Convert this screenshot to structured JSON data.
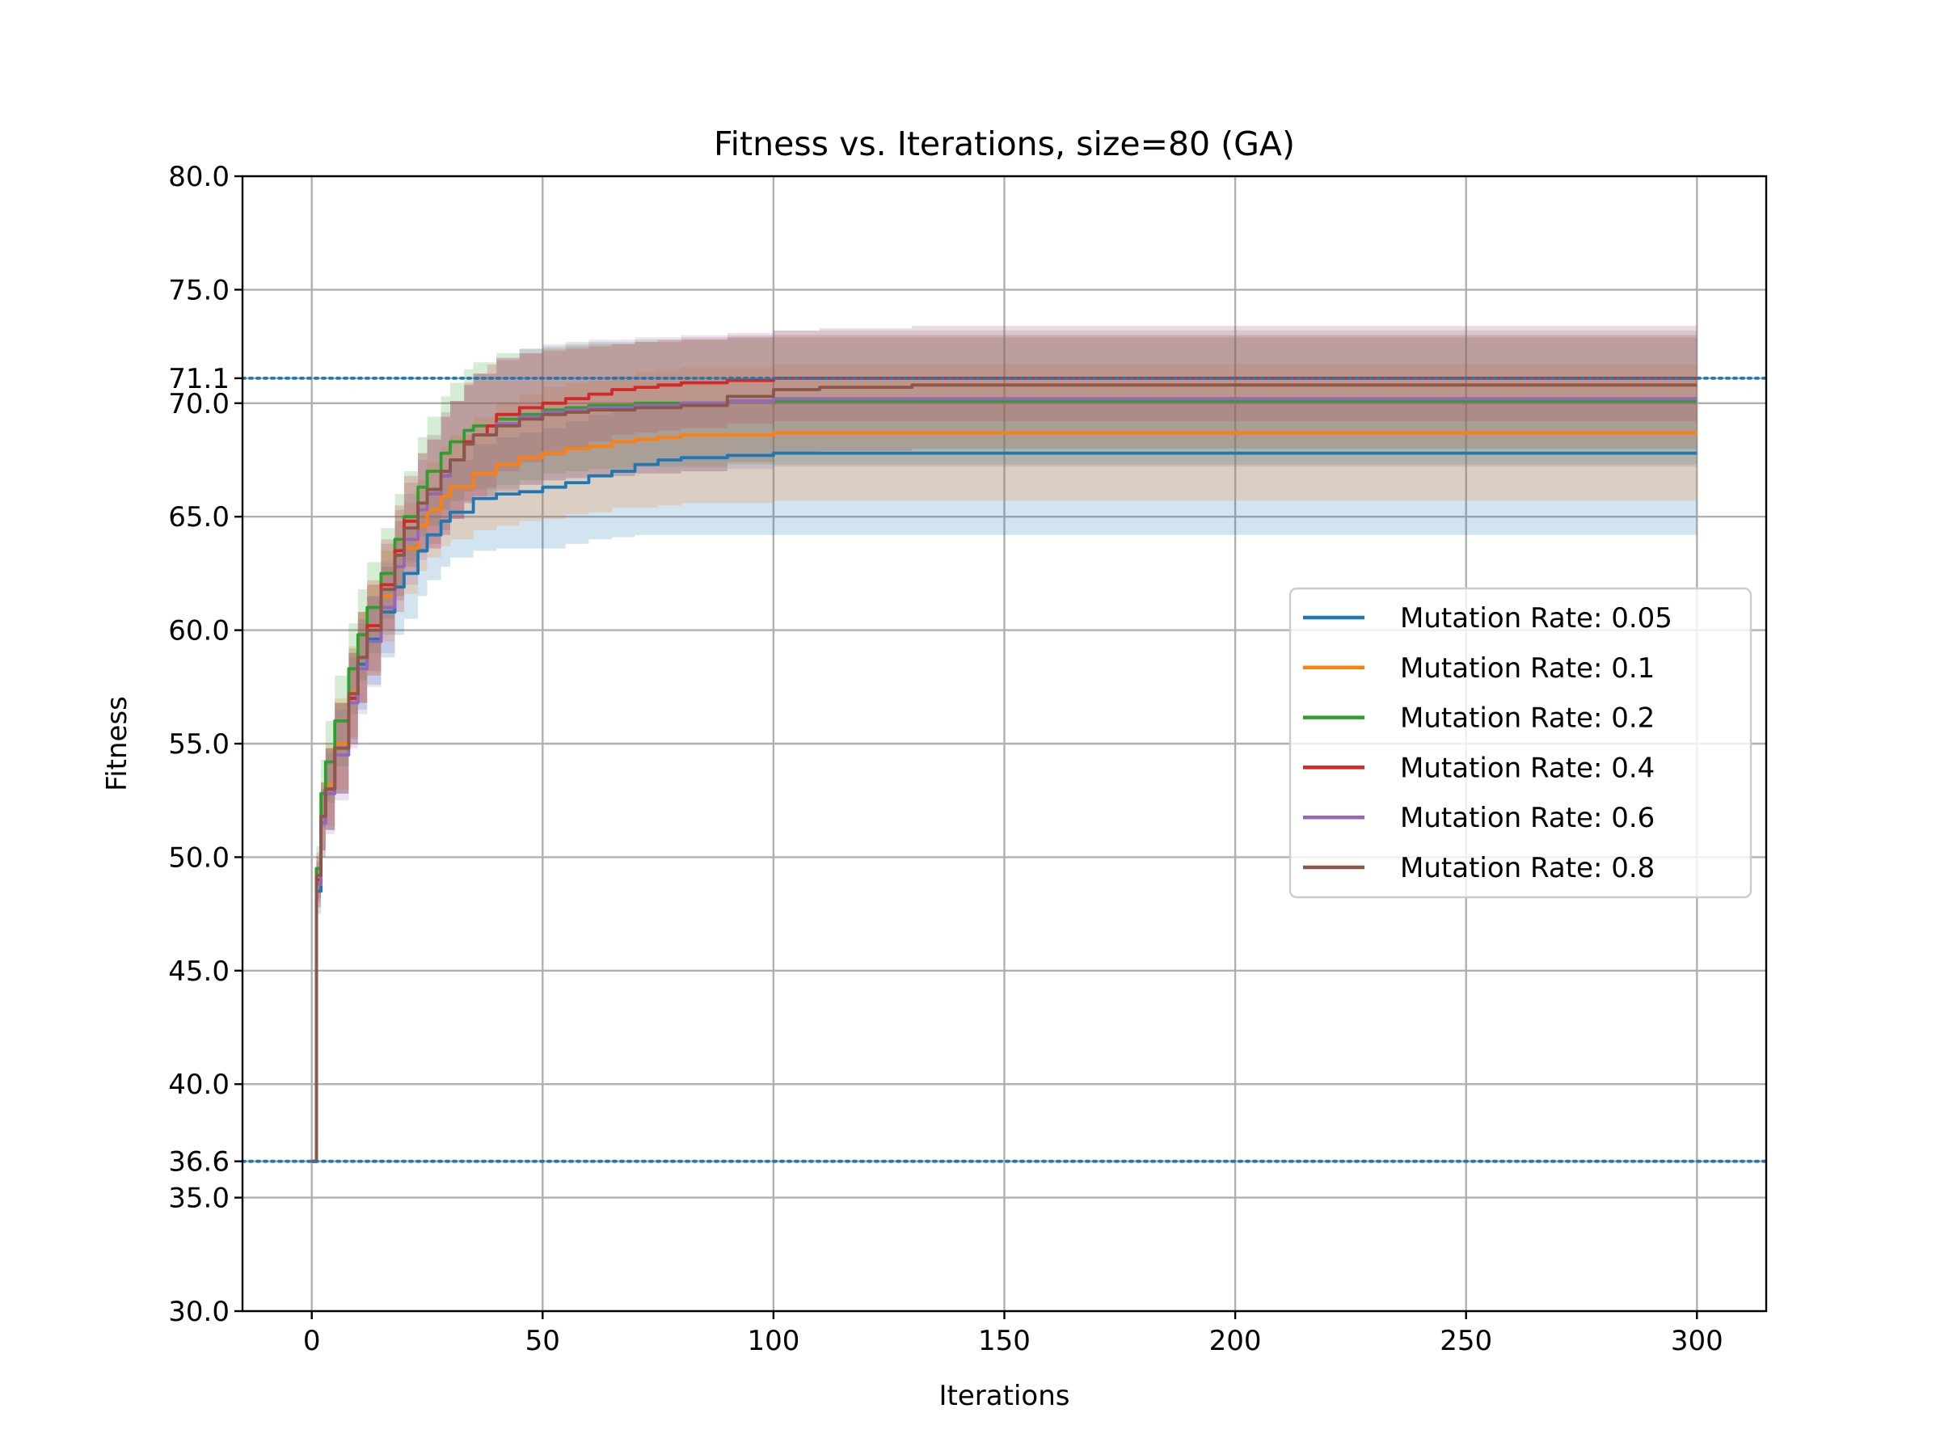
{
  "chart_data": {
    "type": "line",
    "title": "Fitness vs. Iterations, size=80 (GA)",
    "xlabel": "Iterations",
    "ylabel": "Fitness",
    "xlim": [
      -15,
      315
    ],
    "ylim": [
      30,
      80
    ],
    "xticks": [
      0,
      50,
      100,
      150,
      200,
      250,
      300
    ],
    "xtick_labels": [
      "0",
      "50",
      "100",
      "150",
      "200",
      "250",
      "300"
    ],
    "yticks": [
      30,
      35,
      36.6,
      40,
      45,
      50,
      55,
      60,
      65,
      70,
      71.1,
      75,
      80
    ],
    "ytick_labels": [
      "30.0",
      "35.0",
      "36.6",
      "40.0",
      "45.0",
      "50.0",
      "55.0",
      "60.0",
      "65.0",
      "70.0",
      "71.1",
      "75.0",
      "80.0"
    ],
    "grid": true,
    "reference_lines": [
      {
        "y": 71.1,
        "style": "dotted",
        "color": "#1f77b4"
      },
      {
        "y": 36.6,
        "style": "dotted",
        "color": "#1f77b4"
      }
    ],
    "legend_position": "center-right",
    "series": [
      {
        "name": "Mutation Rate: 0.05",
        "color": "#1f77b4",
        "x": [
          0,
          1,
          2,
          3,
          5,
          8,
          10,
          12,
          15,
          18,
          20,
          23,
          25,
          28,
          30,
          35,
          40,
          45,
          50,
          55,
          60,
          65,
          70,
          75,
          80,
          90,
          100,
          150,
          200,
          250,
          300
        ],
        "y": [
          36.6,
          48.5,
          51.5,
          53.0,
          54.8,
          57.0,
          58.5,
          59.6,
          60.8,
          61.9,
          62.5,
          63.5,
          64.2,
          64.8,
          65.2,
          65.8,
          66.0,
          66.1,
          66.3,
          66.5,
          66.8,
          67.0,
          67.3,
          67.5,
          67.6,
          67.7,
          67.8,
          67.8,
          67.8,
          67.8,
          67.8
        ],
        "upper": [
          36.6,
          49.5,
          53.0,
          54.8,
          56.8,
          59.0,
          60.5,
          61.5,
          62.8,
          63.9,
          64.5,
          65.5,
          66.3,
          67.0,
          67.5,
          68.2,
          68.5,
          68.7,
          68.9,
          69.2,
          69.5,
          69.7,
          69.9,
          70.0,
          70.1,
          70.1,
          70.1,
          70.1,
          70.1,
          70.1,
          70.1
        ],
        "lower": [
          36.6,
          47.5,
          50.0,
          51.2,
          52.8,
          55.0,
          56.5,
          57.6,
          58.8,
          59.8,
          60.5,
          61.5,
          62.2,
          62.8,
          63.2,
          63.5,
          63.6,
          63.6,
          63.6,
          63.8,
          64.0,
          64.1,
          64.2,
          64.2,
          64.2,
          64.2,
          64.2,
          64.2,
          64.2,
          64.2,
          64.2
        ]
      },
      {
        "name": "Mutation Rate: 0.1",
        "color": "#ff7f0e",
        "x": [
          0,
          1,
          2,
          3,
          5,
          8,
          10,
          12,
          15,
          18,
          20,
          23,
          25,
          28,
          30,
          35,
          40,
          45,
          50,
          55,
          60,
          65,
          70,
          75,
          80,
          90,
          100,
          150,
          200,
          250,
          300
        ],
        "y": [
          36.6,
          48.8,
          51.8,
          53.2,
          55.0,
          57.3,
          58.8,
          60.0,
          61.5,
          62.8,
          63.6,
          64.6,
          65.3,
          65.9,
          66.3,
          66.9,
          67.3,
          67.6,
          67.8,
          68.0,
          68.1,
          68.3,
          68.4,
          68.5,
          68.6,
          68.6,
          68.7,
          68.7,
          68.7,
          68.7,
          68.7
        ],
        "upper": [
          36.6,
          49.8,
          53.3,
          55.0,
          57.0,
          59.3,
          60.8,
          62.0,
          63.5,
          64.8,
          65.6,
          66.6,
          67.4,
          68.1,
          68.6,
          69.4,
          70.0,
          70.4,
          70.7,
          70.9,
          71.0,
          71.2,
          71.4,
          71.5,
          71.6,
          71.6,
          71.7,
          71.7,
          71.7,
          71.7,
          71.7
        ],
        "lower": [
          36.6,
          47.8,
          50.3,
          51.4,
          53.0,
          55.3,
          56.8,
          58.0,
          59.5,
          60.8,
          61.6,
          62.6,
          63.2,
          63.7,
          64.0,
          64.4,
          64.6,
          64.8,
          64.9,
          65.1,
          65.2,
          65.4,
          65.4,
          65.5,
          65.6,
          65.6,
          65.7,
          65.7,
          65.7,
          65.7,
          65.7
        ]
      },
      {
        "name": "Mutation Rate: 0.2",
        "color": "#2ca02c",
        "x": [
          0,
          1,
          2,
          3,
          5,
          8,
          10,
          12,
          15,
          18,
          20,
          23,
          25,
          28,
          30,
          33,
          35,
          40,
          45,
          50,
          55,
          60,
          70,
          80,
          90,
          100,
          150,
          200,
          250,
          300
        ],
        "y": [
          36.6,
          49.5,
          52.8,
          54.2,
          56.0,
          58.3,
          59.8,
          61.0,
          62.5,
          64.0,
          65.0,
          66.3,
          67.0,
          67.8,
          68.3,
          68.8,
          69.0,
          69.3,
          69.5,
          69.7,
          69.8,
          69.9,
          70.0,
          70.0,
          70.1,
          70.1,
          70.1,
          70.1,
          70.1,
          70.1
        ],
        "upper": [
          36.6,
          50.5,
          54.3,
          56.0,
          58.0,
          60.3,
          61.8,
          63.0,
          64.5,
          66.0,
          67.0,
          68.5,
          69.4,
          70.3,
          70.9,
          71.5,
          71.8,
          72.2,
          72.4,
          72.5,
          72.6,
          72.7,
          72.8,
          72.8,
          72.9,
          72.9,
          72.9,
          72.9,
          72.9,
          72.9
        ],
        "lower": [
          36.6,
          48.5,
          51.3,
          52.4,
          54.0,
          56.3,
          57.8,
          59.0,
          60.5,
          62.0,
          63.0,
          64.1,
          64.6,
          65.3,
          65.7,
          66.1,
          66.2,
          66.4,
          66.6,
          66.9,
          67.0,
          67.1,
          67.2,
          67.2,
          67.3,
          67.3,
          67.3,
          67.3,
          67.3,
          67.3
        ]
      },
      {
        "name": "Mutation Rate: 0.4",
        "color": "#d62728",
        "x": [
          0,
          1,
          2,
          3,
          5,
          8,
          10,
          12,
          15,
          18,
          20,
          23,
          25,
          28,
          30,
          33,
          35,
          38,
          40,
          45,
          50,
          55,
          60,
          65,
          70,
          75,
          80,
          90,
          100,
          150,
          200,
          250,
          300
        ],
        "y": [
          36.6,
          49.0,
          51.8,
          53.0,
          54.8,
          57.0,
          58.8,
          60.2,
          62.0,
          63.5,
          64.8,
          65.6,
          66.0,
          66.8,
          67.5,
          68.3,
          68.6,
          69.0,
          69.5,
          69.8,
          70.0,
          70.2,
          70.4,
          70.6,
          70.7,
          70.8,
          70.9,
          71.0,
          71.1,
          71.1,
          71.1,
          71.1,
          71.1
        ],
        "upper": [
          36.6,
          50.0,
          53.3,
          54.8,
          56.8,
          59.0,
          60.8,
          62.2,
          64.0,
          65.5,
          66.8,
          67.8,
          68.4,
          69.4,
          70.1,
          70.9,
          71.3,
          71.7,
          72.0,
          72.2,
          72.3,
          72.4,
          72.5,
          72.6,
          72.7,
          72.8,
          72.9,
          72.9,
          73.0,
          73.0,
          73.0,
          73.0,
          73.0
        ],
        "lower": [
          36.6,
          48.0,
          50.3,
          51.2,
          52.8,
          55.0,
          56.8,
          58.2,
          60.0,
          61.5,
          62.8,
          63.4,
          63.6,
          64.2,
          64.9,
          65.7,
          65.9,
          66.3,
          67.0,
          67.4,
          67.7,
          68.0,
          68.3,
          68.6,
          68.7,
          68.8,
          68.9,
          69.1,
          69.2,
          69.2,
          69.2,
          69.2,
          69.2
        ]
      },
      {
        "name": "Mutation Rate: 0.6",
        "color": "#9467bd",
        "x": [
          0,
          1,
          2,
          3,
          5,
          8,
          10,
          12,
          15,
          18,
          20,
          23,
          25,
          28,
          30,
          33,
          35,
          40,
          45,
          50,
          55,
          60,
          70,
          80,
          90,
          100,
          150,
          200,
          250,
          300
        ],
        "y": [
          36.6,
          48.8,
          51.5,
          52.8,
          54.5,
          56.8,
          58.3,
          59.5,
          61.0,
          62.8,
          64.0,
          65.3,
          66.0,
          66.8,
          67.5,
          68.2,
          68.6,
          69.1,
          69.4,
          69.6,
          69.7,
          69.8,
          69.9,
          70.0,
          70.1,
          70.2,
          70.2,
          70.2,
          70.2,
          70.2
        ],
        "upper": [
          36.6,
          49.8,
          53.0,
          54.6,
          56.5,
          58.8,
          60.3,
          61.5,
          63.0,
          64.8,
          66.0,
          67.5,
          68.4,
          69.4,
          70.1,
          70.8,
          71.3,
          72.0,
          72.4,
          72.6,
          72.7,
          72.8,
          72.9,
          73.0,
          73.1,
          73.2,
          73.2,
          73.2,
          73.2,
          73.2
        ],
        "lower": [
          36.6,
          47.8,
          50.0,
          51.0,
          52.5,
          54.8,
          56.3,
          57.5,
          59.0,
          60.8,
          62.0,
          63.1,
          63.6,
          64.2,
          64.9,
          65.6,
          65.9,
          66.2,
          66.4,
          66.6,
          66.7,
          66.8,
          66.9,
          67.0,
          67.1,
          67.2,
          67.2,
          67.2,
          67.2,
          67.2
        ]
      },
      {
        "name": "Mutation Rate: 0.8",
        "color": "#8c564b",
        "x": [
          0,
          1,
          2,
          3,
          5,
          8,
          10,
          12,
          15,
          18,
          20,
          23,
          25,
          28,
          30,
          33,
          35,
          40,
          45,
          50,
          55,
          60,
          70,
          80,
          90,
          100,
          110,
          130,
          150,
          200,
          250,
          300
        ],
        "y": [
          36.6,
          49.2,
          51.8,
          53.0,
          54.8,
          57.2,
          58.8,
          60.0,
          61.8,
          63.3,
          64.5,
          65.6,
          66.2,
          67.0,
          67.5,
          68.2,
          68.6,
          69.0,
          69.3,
          69.5,
          69.6,
          69.7,
          69.8,
          69.9,
          70.3,
          70.6,
          70.7,
          70.8,
          70.8,
          70.8,
          70.8,
          70.8
        ],
        "upper": [
          36.6,
          50.2,
          53.3,
          54.8,
          56.8,
          59.2,
          60.8,
          62.0,
          63.8,
          65.3,
          66.5,
          67.8,
          68.6,
          69.6,
          70.1,
          70.8,
          71.3,
          71.9,
          72.2,
          72.4,
          72.5,
          72.6,
          72.7,
          72.8,
          73.0,
          73.2,
          73.3,
          73.4,
          73.4,
          73.4,
          73.4,
          73.4
        ],
        "lower": [
          36.6,
          48.2,
          50.3,
          51.2,
          52.8,
          55.2,
          56.8,
          58.0,
          59.8,
          61.3,
          62.5,
          63.4,
          63.8,
          64.4,
          64.9,
          65.6,
          65.9,
          66.1,
          66.4,
          66.6,
          66.7,
          66.8,
          66.9,
          67.0,
          67.4,
          67.8,
          67.9,
          68.0,
          68.0,
          68.0,
          68.0,
          68.0
        ]
      }
    ]
  }
}
